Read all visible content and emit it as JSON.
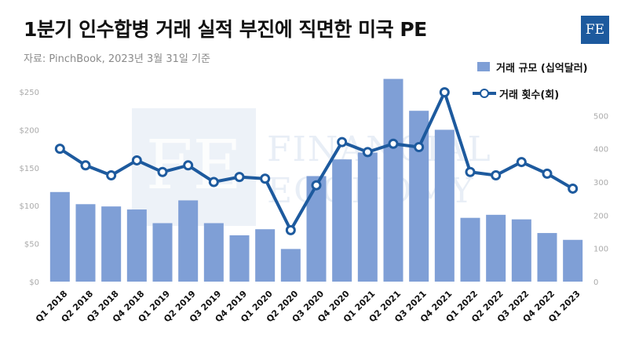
{
  "header": {
    "title": "1분기 인수합병 거래 실적 부진에 직면한 미국 PE",
    "source": "자료: PinchBook, 2023년 3월 31일 기준",
    "logo_text": "FE"
  },
  "watermark": {
    "text_line1": "FINANCIAL",
    "text_line2": "ECONOMY",
    "mark": "FE"
  },
  "colors": {
    "bars": "#7f9fd6",
    "line": "#1d5a9e",
    "axis_text": "#aaaaaa",
    "watermark": "#dfe7f3"
  },
  "chart_data": {
    "type": "bar",
    "title": "1분기 인수합병 거래 실적 부진에 직면한 미국 PE",
    "categories": [
      "Q1 2018",
      "Q2 2018",
      "Q3 2018",
      "Q4 2018",
      "Q1 2019",
      "Q2 2019",
      "Q3 2019",
      "Q4 2019",
      "Q1 2020",
      "Q2 2020",
      "Q3 2020",
      "Q4 2020",
      "Q1 2021",
      "Q2 2021",
      "Q3 2021",
      "Q4 2021",
      "Q1 2022",
      "Q2 2022",
      "Q3 2022",
      "Q4 2022",
      "Q1 2023"
    ],
    "series": [
      {
        "name": "거래 규모 (십억달러)",
        "type": "bar",
        "axis": "left",
        "values": [
          118,
          102,
          99,
          95,
          77,
          107,
          77,
          61,
          69,
          43,
          139,
          161,
          170,
          267,
          225,
          200,
          84,
          88,
          82,
          64,
          55
        ]
      },
      {
        "name": "거래 횟수(회)",
        "type": "line",
        "axis": "right",
        "values": [
          400,
          350,
          320,
          365,
          330,
          350,
          300,
          315,
          310,
          155,
          290,
          420,
          390,
          415,
          405,
          570,
          330,
          320,
          360,
          325,
          280
        ]
      }
    ],
    "left_axis": {
      "ticks": [
        "$0",
        "$50",
        "$100",
        "$150",
        "$200",
        "$250"
      ],
      "ylim": [
        0,
        280
      ]
    },
    "right_axis": {
      "ticks": [
        "0",
        "100",
        "200",
        "300",
        "400",
        "500"
      ],
      "ylim": [
        0,
        640
      ]
    },
    "grid": false,
    "legend_position": "top-right"
  },
  "legend": {
    "items": [
      {
        "label": "거래 규모 (십억달러)"
      },
      {
        "label": "거래 횟수(회)"
      }
    ]
  }
}
